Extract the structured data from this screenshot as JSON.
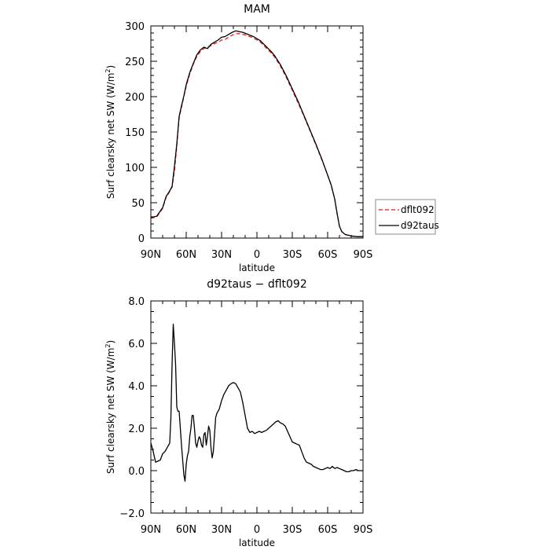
{
  "chart_data": [
    {
      "type": "line",
      "title": "MAM",
      "xlabel": "latitude",
      "ylabel": "Surf clearsky net SW (W/m",
      "ylabel_sup": "2",
      "ylabel_end": ")",
      "xlim": [
        90,
        -90
      ],
      "ylim": [
        0,
        300
      ],
      "xticks": [
        90,
        60,
        30,
        0,
        -30,
        -60,
        -90
      ],
      "xtick_labels": [
        "90N",
        "60N",
        "30N",
        "0",
        "30S",
        "60S",
        "90S"
      ],
      "yticks": [
        0,
        50,
        100,
        150,
        200,
        250,
        300
      ],
      "ytick_labels": [
        "0",
        "50",
        "100",
        "150",
        "200",
        "250",
        "300"
      ],
      "grid": false,
      "legend_placement": "right",
      "series": [
        {
          "name": "dflt092",
          "color": "#e31a1c",
          "dash": "dashed",
          "x": [
            90,
            85,
            80,
            77,
            75,
            72,
            70,
            68,
            66,
            64,
            62,
            60,
            57,
            54,
            51,
            48,
            45,
            42,
            39,
            36,
            33,
            30,
            27,
            24,
            21,
            18,
            15,
            12,
            9,
            6,
            3,
            0,
            -3,
            -6,
            -9,
            -12,
            -15,
            -20,
            -25,
            -30,
            -35,
            -40,
            -45,
            -50,
            -55,
            -60,
            -63,
            -66,
            -68,
            -70,
            -72,
            -75,
            -80,
            -85,
            -90
          ],
          "y": [
            28,
            30,
            42,
            58,
            63,
            72,
            95,
            130,
            170,
            185,
            200,
            215,
            232,
            246,
            257,
            264,
            268,
            270,
            272,
            275,
            277,
            280,
            281,
            284,
            287,
            289,
            289,
            288,
            287,
            285,
            283,
            280,
            277,
            272,
            267,
            262,
            256,
            243,
            227,
            209,
            191,
            172,
            152,
            132,
            111,
            89,
            75,
            55,
            35,
            17,
            9,
            5,
            3,
            2,
            2
          ]
        },
        {
          "name": "d92taus",
          "color": "#000000",
          "dash": "solid",
          "x": [
            90,
            85,
            80,
            77,
            75,
            72,
            70,
            68,
            66,
            64,
            62,
            60,
            57,
            54,
            51,
            48,
            45,
            42,
            39,
            36,
            33,
            30,
            27,
            24,
            21,
            18,
            15,
            12,
            9,
            6,
            3,
            0,
            -3,
            -6,
            -9,
            -12,
            -15,
            -20,
            -25,
            -30,
            -35,
            -40,
            -45,
            -50,
            -55,
            -60,
            -63,
            -66,
            -68,
            -70,
            -72,
            -75,
            -80,
            -85,
            -90
          ],
          "y": [
            29,
            31,
            43,
            59,
            64,
            73,
            101,
            133,
            172,
            187,
            201,
            217,
            234,
            247,
            259,
            266,
            270,
            268,
            274,
            277,
            280,
            284,
            285,
            288,
            291,
            293,
            292,
            291,
            289,
            287,
            285,
            282,
            279,
            274,
            269,
            264,
            258,
            245,
            229,
            211,
            193,
            173,
            153,
            133,
            112,
            89,
            75,
            55,
            35,
            17,
            9,
            5,
            3,
            2,
            2
          ]
        }
      ]
    },
    {
      "type": "line",
      "title": "d92taus − dflt092",
      "xlabel": "latitude",
      "ylabel": "Surf clearsky net SW (W/m",
      "ylabel_sup": "2",
      "ylabel_end": ")",
      "xlim": [
        90,
        -90
      ],
      "ylim": [
        -2,
        8
      ],
      "xticks": [
        90,
        60,
        30,
        0,
        -30,
        -60,
        -90
      ],
      "xtick_labels": [
        "90N",
        "60N",
        "30N",
        "0",
        "30S",
        "60S",
        "90S"
      ],
      "yticks": [
        -2,
        0,
        2,
        4,
        6,
        8
      ],
      "ytick_labels": [
        "−2.0",
        "0.0",
        "2.0",
        "4.0",
        "6.0",
        "8.0"
      ],
      "grid": false,
      "series": [
        {
          "name": "",
          "color": "#000000",
          "dash": "solid",
          "x": [
            90,
            88,
            86,
            84,
            82,
            80,
            78,
            76,
            74,
            73,
            72,
            71,
            70,
            69,
            68,
            67,
            66,
            65,
            64,
            63,
            62,
            61,
            60,
            59,
            58,
            57,
            56,
            55,
            54,
            53,
            52,
            51,
            50,
            49,
            48,
            47,
            46,
            45,
            44,
            43,
            42,
            41,
            40,
            39,
            38,
            37,
            36,
            35,
            34,
            33,
            32,
            31,
            30,
            28,
            26,
            24,
            22,
            20,
            18,
            16,
            14,
            12,
            10,
            8,
            6,
            4,
            2,
            0,
            -2,
            -4,
            -6,
            -8,
            -10,
            -12,
            -14,
            -16,
            -18,
            -20,
            -22,
            -24,
            -26,
            -28,
            -30,
            -32,
            -34,
            -36,
            -38,
            -40,
            -42,
            -44,
            -46,
            -48,
            -50,
            -52,
            -54,
            -56,
            -58,
            -60,
            -62,
            -64,
            -66,
            -68,
            -70,
            -72,
            -74,
            -76,
            -78,
            -80,
            -82,
            -84,
            -86,
            -88,
            -90
          ],
          "y": [
            1.3,
            0.9,
            0.4,
            0.45,
            0.5,
            0.8,
            0.9,
            1.1,
            1.3,
            2.5,
            5.0,
            6.9,
            6.0,
            5.0,
            3.0,
            2.8,
            2.8,
            2.0,
            1.2,
            0.5,
            -0.2,
            -0.5,
            0.3,
            0.7,
            0.9,
            1.6,
            2.0,
            2.6,
            2.6,
            2.0,
            1.3,
            1.1,
            1.4,
            1.6,
            1.5,
            1.2,
            1.1,
            1.7,
            1.8,
            1.2,
            1.6,
            2.1,
            1.9,
            1.1,
            0.6,
            0.9,
            1.7,
            2.5,
            2.7,
            2.8,
            2.9,
            3.1,
            3.3,
            3.6,
            3.8,
            4.0,
            4.1,
            4.15,
            4.1,
            3.9,
            3.7,
            3.2,
            2.6,
            2.0,
            1.8,
            1.85,
            1.75,
            1.8,
            1.85,
            1.8,
            1.85,
            1.9,
            2.0,
            2.1,
            2.2,
            2.3,
            2.35,
            2.25,
            2.2,
            2.1,
            1.85,
            1.6,
            1.35,
            1.3,
            1.25,
            1.2,
            0.9,
            0.6,
            0.4,
            0.35,
            0.3,
            0.2,
            0.15,
            0.1,
            0.05,
            0.05,
            0.1,
            0.15,
            0.1,
            0.2,
            0.1,
            0.15,
            0.1,
            0.05,
            0.0,
            -0.05,
            -0.05,
            0.0,
            0.0,
            0.05,
            0.0,
            0.0,
            0.0
          ]
        }
      ]
    }
  ]
}
